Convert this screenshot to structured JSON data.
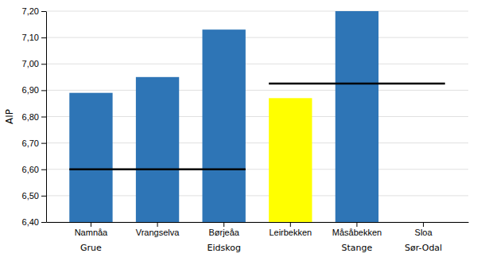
{
  "chart_data": {
    "type": "bar",
    "categories": [
      "Namnåa",
      "Vrangselva",
      "Børjeåa",
      "Leirbekken",
      "Måsåbekken",
      "Sloa"
    ],
    "values": [
      6.89,
      6.95,
      7.13,
      6.87,
      7.2,
      null
    ],
    "colors": [
      "#2E75B6",
      "#2E75B6",
      "#2E75B6",
      "#FFFF00",
      "#2E75B6",
      "#2E75B6"
    ],
    "y_label": "AIP",
    "ylim": [
      6.4,
      7.2
    ],
    "yticks": [
      {
        "value": 6.4,
        "label": "6,40"
      },
      {
        "value": 6.5,
        "label": "6,50"
      },
      {
        "value": 6.6,
        "label": "6,60"
      },
      {
        "value": 6.7,
        "label": "6,70"
      },
      {
        "value": 6.8,
        "label": "6,80"
      },
      {
        "value": 6.9,
        "label": "6,90"
      },
      {
        "value": 7.0,
        "label": "7,00"
      },
      {
        "value": 7.1,
        "label": "7,10"
      },
      {
        "value": 7.2,
        "label": "7,20"
      }
    ],
    "grid": true,
    "reference_lines": [
      {
        "value": 6.6,
        "from": "Namnåa",
        "to": "Børjeåa",
        "color": "#000000"
      },
      {
        "value": 6.925,
        "from": "Leirbekken",
        "to": "Sloa",
        "color": "#000000"
      }
    ],
    "annotations": [
      {
        "text": "Grue",
        "category": "Namnåa"
      },
      {
        "text": "Eidskog",
        "category": "Børjeåa"
      },
      {
        "text": "Stange",
        "category": "Måsåbekken"
      },
      {
        "text": "Sør-Odal",
        "category": "Sloa"
      }
    ]
  }
}
